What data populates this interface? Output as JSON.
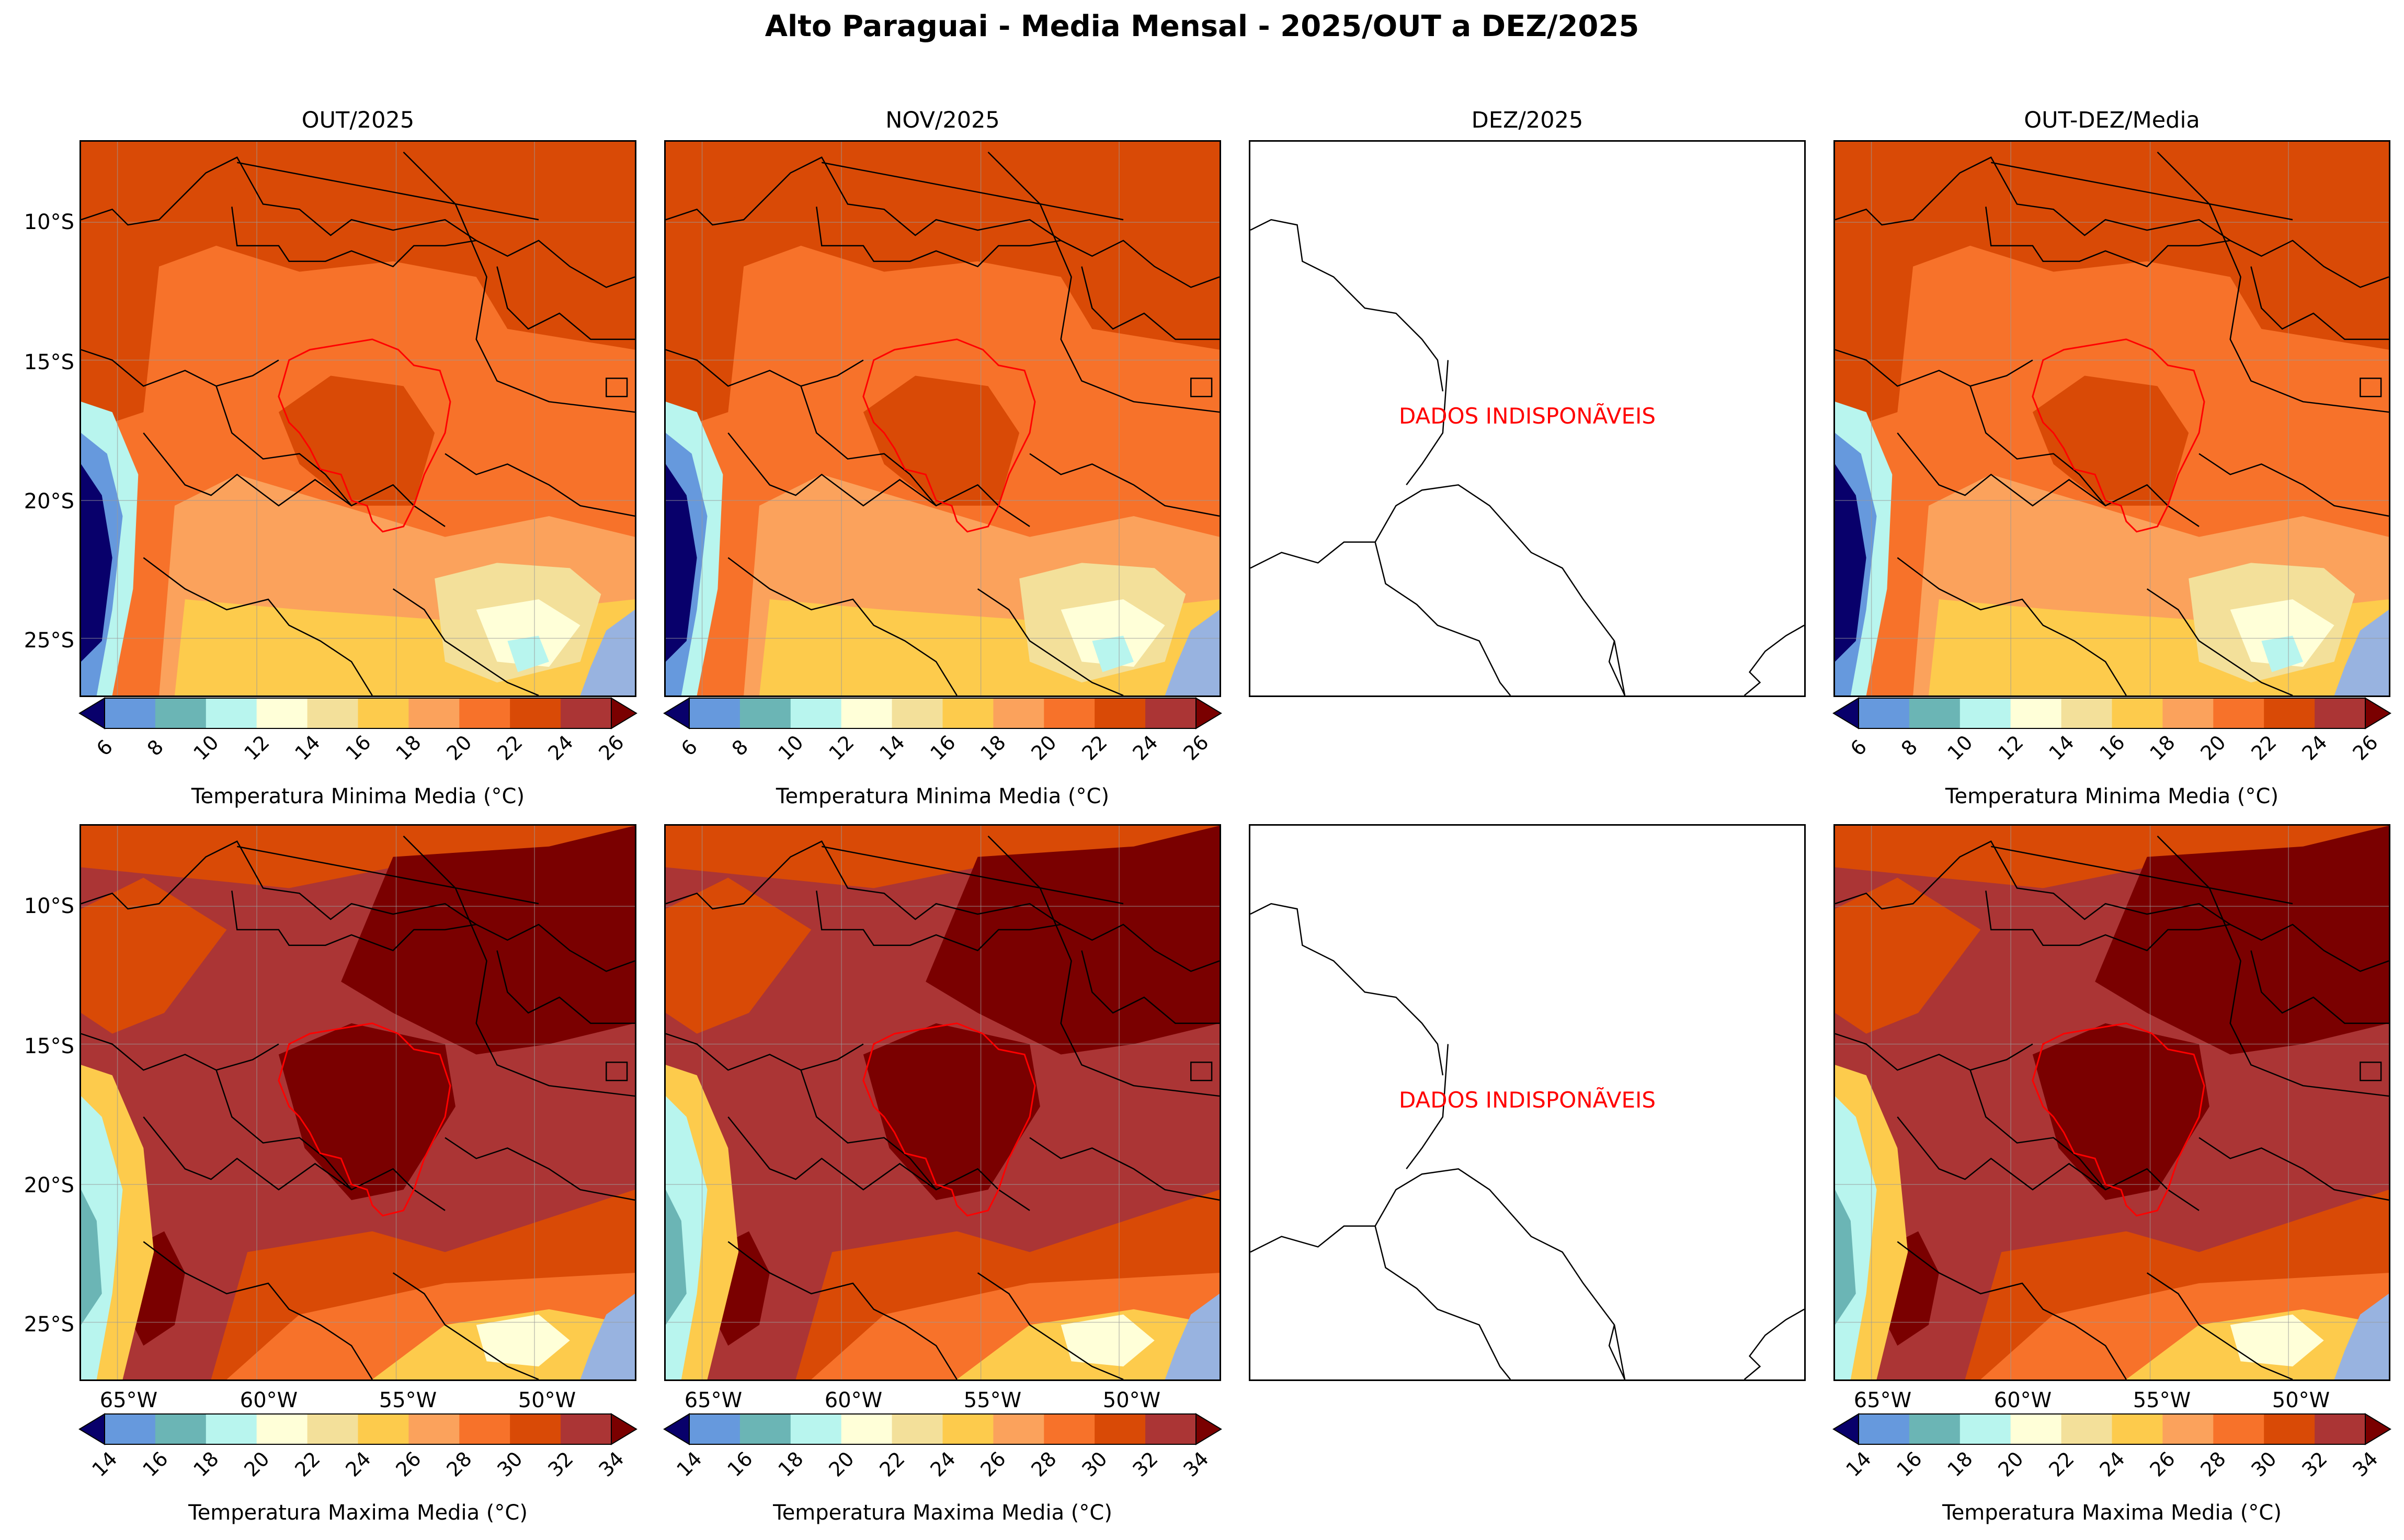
{
  "title": "Alto Paraguai - Media Mensal - 2025/OUT a DEZ/2025",
  "panels": [
    {
      "title": "OUT/2025",
      "available": true
    },
    {
      "title": "NOV/2025",
      "available": true
    },
    {
      "title": "DEZ/2025",
      "available": false
    },
    {
      "title": "OUT-DEZ/Media",
      "available": true
    }
  ],
  "no_data_text": "DADOS INDISPONÃVEIS",
  "lat_labels": [
    "10°S",
    "15°S",
    "20°S",
    "25°S"
  ],
  "lon_labels": [
    "65°W",
    "60°W",
    "55°W",
    "50°W"
  ],
  "tmin": {
    "label": "Temperatura Minima Media ($^\\circ$C)",
    "label_display": "Temperatura Minima Media (°C)",
    "ticks": [
      "6",
      "8",
      "10",
      "12",
      "14",
      "16",
      "18",
      "20",
      "22",
      "24",
      "26"
    ]
  },
  "tmax": {
    "label_display": "Temperatura Maxima Media (°C)",
    "ticks": [
      "14",
      "16",
      "18",
      "20",
      "22",
      "24",
      "26",
      "28",
      "30",
      "32",
      "34"
    ]
  },
  "colormap": [
    "#6699dd",
    "#6bb5b5",
    "#b8f5ee",
    "#ffffd8",
    "#f3e09a",
    "#fdcb4c",
    "#fba25c",
    "#f7722a",
    "#d94a06",
    "#ab3535"
  ],
  "cmap_under": "#08006b",
  "cmap_over": "#7a0000",
  "ocean_color": "#98b3e0",
  "basin_outline_color": "#ff0000"
}
